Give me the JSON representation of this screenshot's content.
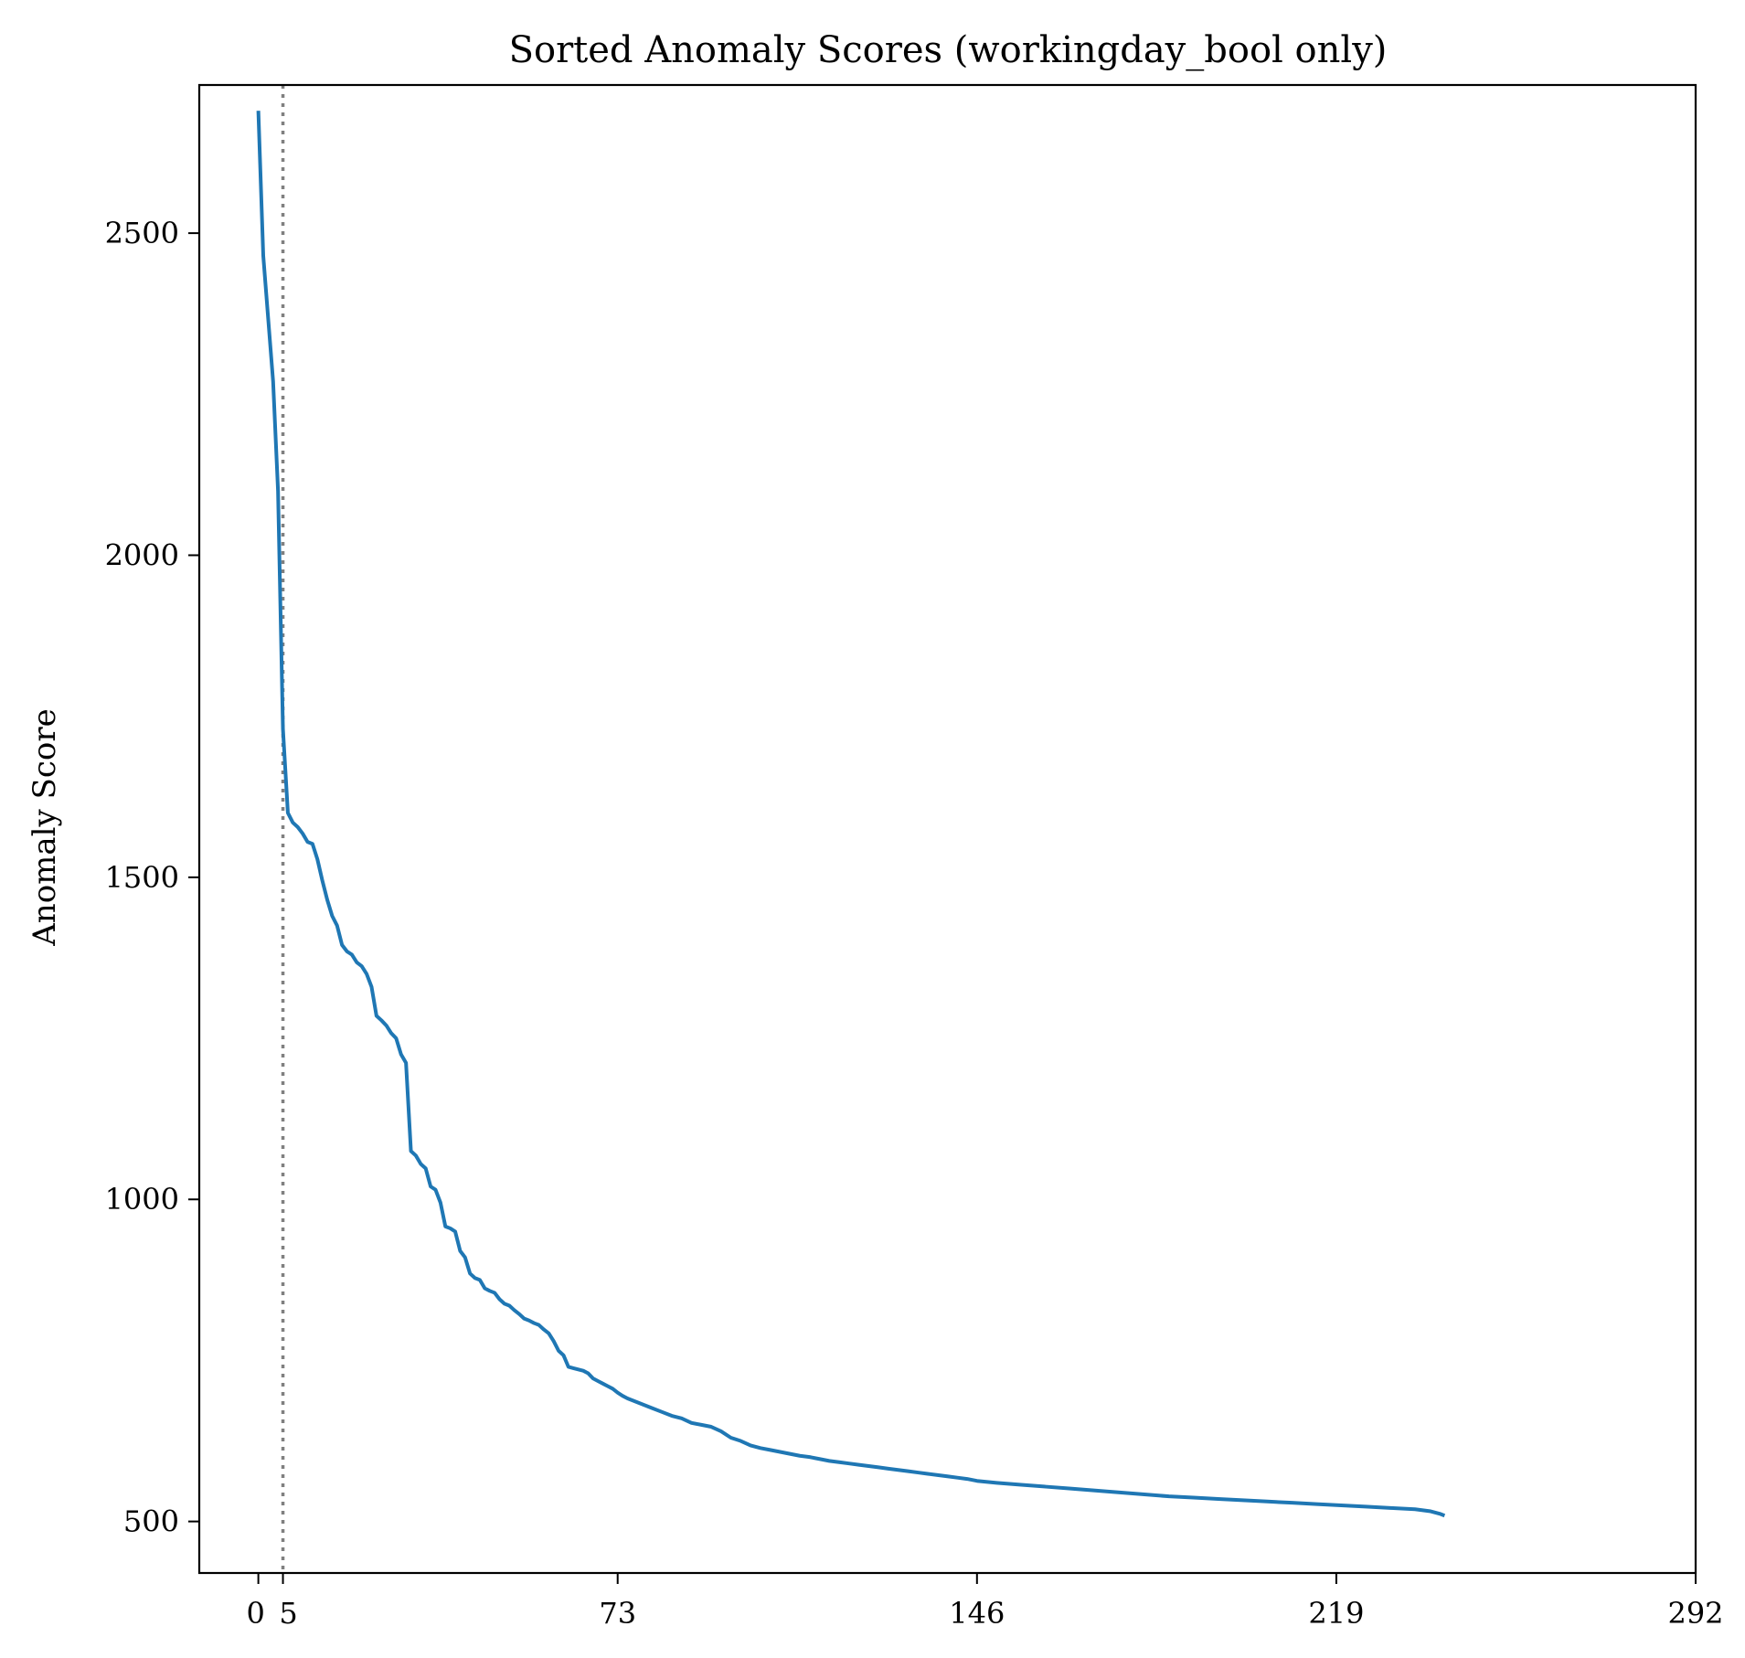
{
  "chart_data": {
    "type": "line",
    "title": "Sorted Anomaly Scores (workingday_bool only)",
    "xlabel": "",
    "ylabel": "Anomaly Score",
    "xlim": [
      -12,
      292
    ],
    "ylim": [
      420,
      2730
    ],
    "x_ticks": [
      {
        "value": 0,
        "label": "0"
      },
      {
        "value": 5,
        "label": "5"
      },
      {
        "value": 73,
        "label": "73"
      },
      {
        "value": 146,
        "label": "146"
      },
      {
        "value": 219,
        "label": "219"
      },
      {
        "value": 292,
        "label": "292"
      }
    ],
    "y_ticks": [
      {
        "value": 500,
        "label": "500"
      },
      {
        "value": 1000,
        "label": "1000"
      },
      {
        "value": 1500,
        "label": "1500"
      },
      {
        "value": 2000,
        "label": "2000"
      },
      {
        "value": 2500,
        "label": "2500"
      }
    ],
    "grid": false,
    "legend": "none",
    "series": [
      {
        "color": "#1f77b4",
        "x": [
          0,
          1,
          3,
          4,
          5,
          6,
          7,
          8,
          9,
          10,
          11,
          12,
          13,
          14,
          15,
          16,
          17,
          18,
          19,
          20,
          21,
          22,
          23,
          24,
          25,
          26,
          27,
          28,
          29,
          30,
          31,
          32,
          33,
          34,
          35,
          36,
          37,
          38,
          39,
          40,
          41,
          42,
          43,
          44,
          45,
          46,
          47,
          48,
          49,
          50,
          51,
          52,
          53,
          54,
          55,
          56,
          57,
          58,
          59,
          60,
          61,
          62,
          63,
          64,
          65,
          66,
          67,
          68,
          69,
          70,
          71,
          72,
          73,
          74,
          75,
          76,
          77,
          78,
          80,
          82,
          84,
          86,
          88,
          90,
          92,
          94,
          96,
          98,
          100,
          102,
          104,
          106,
          108,
          110,
          112,
          114,
          116,
          118,
          120,
          122,
          124,
          126,
          128,
          130,
          132,
          134,
          136,
          138,
          140,
          142,
          144,
          146,
          150,
          155,
          160,
          165,
          170,
          175,
          180,
          185,
          190,
          195,
          200,
          205,
          210,
          215,
          220,
          225,
          230,
          235,
          238,
          240,
          241
        ],
        "values": [
          2690,
          2465,
          2270,
          2100,
          1730,
          1600,
          1585,
          1578,
          1568,
          1555,
          1552,
          1528,
          1495,
          1465,
          1440,
          1425,
          1395,
          1385,
          1380,
          1368,
          1362,
          1350,
          1330,
          1285,
          1278,
          1270,
          1258,
          1250,
          1225,
          1212,
          1075,
          1068,
          1055,
          1048,
          1020,
          1015,
          995,
          958,
          955,
          950,
          920,
          910,
          885,
          878,
          875,
          862,
          858,
          855,
          845,
          838,
          835,
          828,
          822,
          815,
          812,
          808,
          805,
          798,
          792,
          780,
          765,
          758,
          740,
          738,
          736,
          734,
          730,
          722,
          718,
          714,
          710,
          706,
          700,
          695,
          691,
          688,
          685,
          682,
          676,
          670,
          664,
          660,
          653,
          650,
          647,
          640,
          630,
          625,
          618,
          614,
          611,
          608,
          605,
          602,
          600,
          597,
          594,
          592,
          590,
          588,
          586,
          584,
          582,
          580,
          578,
          576,
          574,
          572,
          570,
          568,
          566,
          563,
          560,
          557,
          554,
          551,
          548,
          545,
          542,
          539,
          537,
          535,
          533,
          531,
          529,
          527,
          525,
          523,
          521,
          519,
          516,
          512,
          509
        ]
      }
    ],
    "annotations": [
      {
        "type": "vline",
        "x": 5,
        "style": "dotted",
        "color": "#808080"
      }
    ]
  }
}
